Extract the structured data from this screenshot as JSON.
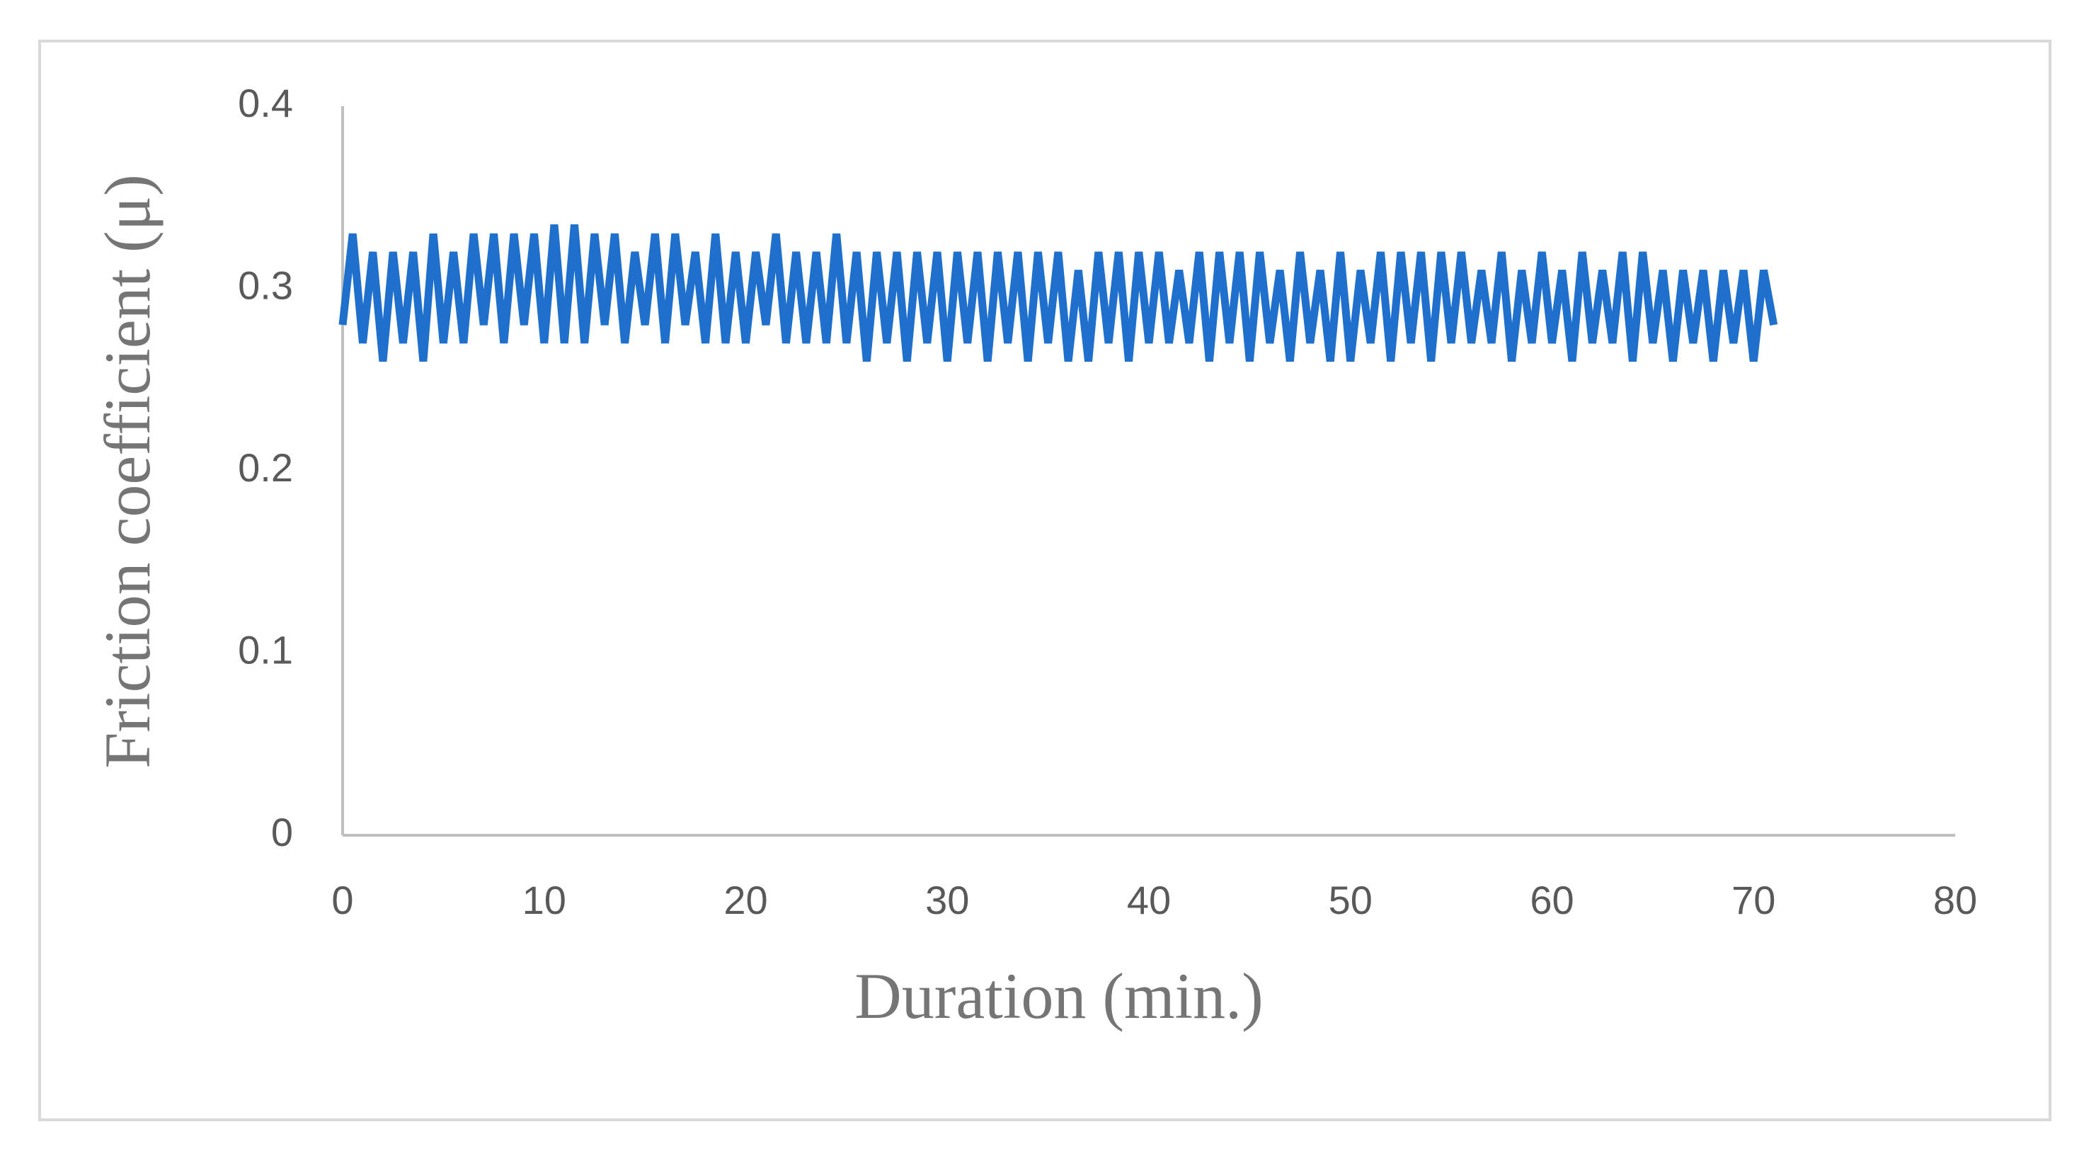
{
  "chart_data": {
    "type": "line",
    "xlabel": "Duration (min.)",
    "ylabel": "Friction coefficient (μ)",
    "color": "#1f6fcc",
    "xlim": [
      0,
      80
    ],
    "xticks": [
      0,
      10,
      20,
      30,
      40,
      50,
      60,
      70,
      80
    ],
    "ylim": [
      0,
      0.4
    ],
    "yticks": [
      0,
      0.1,
      0.2,
      0.3,
      0.4
    ],
    "grid": false,
    "x": [
      0,
      0.5,
      1,
      1.5,
      2,
      2.5,
      3,
      3.5,
      4,
      4.5,
      5,
      5.5,
      6,
      6.5,
      7,
      7.5,
      8,
      8.5,
      9,
      9.5,
      10,
      10.5,
      11,
      11.5,
      12,
      12.5,
      13,
      13.5,
      14,
      14.5,
      15,
      15.5,
      16,
      16.5,
      17,
      17.5,
      18,
      18.5,
      19,
      19.5,
      20,
      20.5,
      21,
      21.5,
      22,
      22.5,
      23,
      23.5,
      24,
      24.5,
      25,
      25.5,
      26,
      26.5,
      27,
      27.5,
      28,
      28.5,
      29,
      29.5,
      30,
      30.5,
      31,
      31.5,
      32,
      32.5,
      33,
      33.5,
      34,
      34.5,
      35,
      35.5,
      36,
      36.5,
      37,
      37.5,
      38,
      38.5,
      39,
      39.5,
      40,
      40.5,
      41,
      41.5,
      42,
      42.5,
      43,
      43.5,
      44,
      44.5,
      45,
      45.5,
      46,
      46.5,
      47,
      47.5,
      48,
      48.5,
      49,
      49.5,
      50,
      50.5,
      51,
      51.5,
      52,
      52.5,
      53,
      53.5,
      54,
      54.5,
      55,
      55.5,
      56,
      56.5,
      57,
      57.5,
      58,
      58.5,
      59,
      59.5,
      60,
      60.5,
      61,
      61.5,
      62,
      62.5,
      63,
      63.5,
      64,
      64.5,
      65,
      65.5,
      66,
      66.5,
      67,
      67.5,
      68,
      68.5,
      69,
      69.5,
      70,
      70.5,
      71
    ],
    "values": [
      0.28,
      0.33,
      0.27,
      0.32,
      0.26,
      0.32,
      0.27,
      0.32,
      0.26,
      0.33,
      0.27,
      0.32,
      0.27,
      0.33,
      0.28,
      0.33,
      0.27,
      0.33,
      0.28,
      0.33,
      0.27,
      0.335,
      0.27,
      0.335,
      0.27,
      0.33,
      0.28,
      0.33,
      0.27,
      0.32,
      0.28,
      0.33,
      0.27,
      0.33,
      0.28,
      0.32,
      0.27,
      0.33,
      0.27,
      0.32,
      0.27,
      0.32,
      0.28,
      0.33,
      0.27,
      0.32,
      0.27,
      0.32,
      0.27,
      0.33,
      0.27,
      0.32,
      0.26,
      0.32,
      0.27,
      0.32,
      0.26,
      0.32,
      0.27,
      0.32,
      0.26,
      0.32,
      0.27,
      0.32,
      0.26,
      0.32,
      0.27,
      0.32,
      0.26,
      0.32,
      0.27,
      0.32,
      0.26,
      0.31,
      0.26,
      0.32,
      0.27,
      0.32,
      0.26,
      0.32,
      0.27,
      0.32,
      0.27,
      0.31,
      0.27,
      0.32,
      0.26,
      0.32,
      0.27,
      0.32,
      0.26,
      0.32,
      0.27,
      0.31,
      0.26,
      0.32,
      0.27,
      0.31,
      0.26,
      0.32,
      0.26,
      0.31,
      0.27,
      0.32,
      0.26,
      0.32,
      0.27,
      0.32,
      0.26,
      0.32,
      0.27,
      0.32,
      0.27,
      0.31,
      0.27,
      0.32,
      0.26,
      0.31,
      0.27,
      0.32,
      0.27,
      0.31,
      0.26,
      0.32,
      0.27,
      0.31,
      0.27,
      0.32,
      0.26,
      0.32,
      0.27,
      0.31,
      0.26,
      0.31,
      0.27,
      0.31,
      0.26,
      0.31,
      0.27,
      0.31,
      0.26,
      0.31,
      0.28
    ]
  }
}
